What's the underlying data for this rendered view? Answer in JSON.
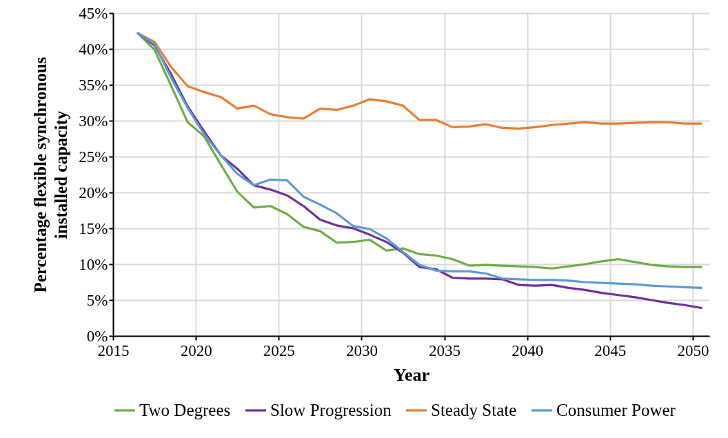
{
  "chart_data": {
    "type": "line",
    "xlabel": "Year",
    "ylabel": "Percentage flexible synchronous installed capacity",
    "x": [
      2016.5,
      2017.5,
      2018.5,
      2019.5,
      2020.5,
      2021.5,
      2022.5,
      2023.5,
      2024.5,
      2025.5,
      2026.5,
      2027.5,
      2028.5,
      2029.5,
      2030.5,
      2031.5,
      2032.5,
      2033.5,
      2034.5,
      2035.5,
      2036.5,
      2037.5,
      2038.5,
      2039.5,
      2040.5,
      2041.5,
      2042.5,
      2043.5,
      2044.5,
      2045.5,
      2046.5,
      2047.5,
      2048.5,
      2049.5,
      2050.5
    ],
    "series": [
      {
        "name": "Two Degrees",
        "color": "#70ad47",
        "values": [
          42.2,
          39.9,
          34.9,
          29.8,
          27.8,
          23.9,
          20.1,
          17.9,
          18.1,
          17.0,
          15.2,
          14.6,
          13.0,
          13.1,
          13.4,
          11.9,
          12.2,
          11.4,
          11.2,
          10.7,
          9.8,
          9.9,
          9.8,
          9.7,
          9.6,
          9.4,
          9.7,
          10.0,
          10.4,
          10.7,
          10.3,
          9.9,
          9.7,
          9.6,
          9.6
        ]
      },
      {
        "name": "Slow Progression",
        "color": "#7030a0",
        "values": [
          42.2,
          40.5,
          36.5,
          32.0,
          28.5,
          25.2,
          23.3,
          21.0,
          20.4,
          19.6,
          18.1,
          16.2,
          15.4,
          15.0,
          14.1,
          13.1,
          11.6,
          9.6,
          9.3,
          8.1,
          8.0,
          8.0,
          7.9,
          7.1,
          7.0,
          7.1,
          6.7,
          6.4,
          6.0,
          5.7,
          5.4,
          5.0,
          4.6,
          4.3,
          3.9
        ]
      },
      {
        "name": "Steady State",
        "color": "#ed7d31",
        "values": [
          42.2,
          41.0,
          37.5,
          34.8,
          34.0,
          33.3,
          31.7,
          32.1,
          30.9,
          30.5,
          30.3,
          31.7,
          31.5,
          32.1,
          33.0,
          32.7,
          32.1,
          30.1,
          30.1,
          29.1,
          29.2,
          29.5,
          29.0,
          28.9,
          29.1,
          29.4,
          29.6,
          29.8,
          29.6,
          29.6,
          29.7,
          29.8,
          29.8,
          29.6,
          29.6
        ]
      },
      {
        "name": "Consumer Power",
        "color": "#5b9bd5",
        "values": [
          42.2,
          40.7,
          36.0,
          31.8,
          28.1,
          25.2,
          22.6,
          21.0,
          21.8,
          21.7,
          19.4,
          18.3,
          17.1,
          15.3,
          14.9,
          13.6,
          11.7,
          9.9,
          9.1,
          9.0,
          9.0,
          8.7,
          8.0,
          7.9,
          7.8,
          7.8,
          7.7,
          7.5,
          7.4,
          7.3,
          7.2,
          7.0,
          6.9,
          6.8,
          6.7
        ]
      }
    ],
    "xlim": [
      2015,
      2051
    ],
    "xticks": [
      2015,
      2020,
      2025,
      2030,
      2035,
      2040,
      2045,
      2050
    ],
    "ylim": [
      0,
      45
    ],
    "yticks": [
      {
        "value": 0,
        "label": "0%"
      },
      {
        "value": 5,
        "label": "5%"
      },
      {
        "value": 10,
        "label": "10%"
      },
      {
        "value": 15,
        "label": "15%"
      },
      {
        "value": 20,
        "label": "20%"
      },
      {
        "value": 25,
        "label": "25%"
      },
      {
        "value": 30,
        "label": "30%"
      },
      {
        "value": 35,
        "label": "35%"
      },
      {
        "value": 40,
        "label": "40%"
      },
      {
        "value": 45,
        "label": "45%"
      }
    ],
    "grid": true,
    "legend": "bottom",
    "marker": "none",
    "line_style": "solid"
  }
}
